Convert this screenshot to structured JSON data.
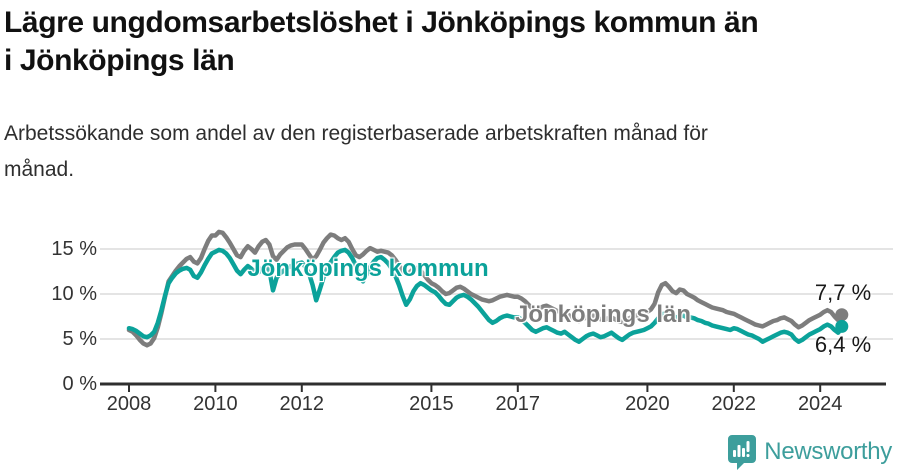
{
  "header": {
    "title": "Lägre ungdomsarbetslöshet i Jönköpings kommun än\ni Jönköpings län",
    "subtitle": "Arbetssökande som andel av den registerbaserade arbetskraften månad för\nmånad."
  },
  "footer": {
    "brand": "Newsworthy",
    "brand_color": "#3d9e9c",
    "logo_icon": "speech-bubble-bar-chart-icon"
  },
  "colors": {
    "kommun_line": "#0ba29a",
    "lan_line": "#7d7d7d",
    "axis": "#2f2f2f",
    "gridline": "#dcdcdc",
    "value_label": "#1a1a1a"
  },
  "chart_data": {
    "type": "line",
    "title": "Lägre ungdomsarbetslöshet i Jönköpings kommun än i Jönköpings län",
    "subtitle": "Arbetssökande som andel av den registerbaserade arbetskraften månad för månad.",
    "xlabel": "",
    "ylabel": "",
    "x_unit": "month",
    "x_start": "2008-01",
    "x_end": "2024-07",
    "ylim": [
      0,
      17.5
    ],
    "grid": "horizontal",
    "legend_position": "inline-labels",
    "x_ticks": [
      {
        "year": 2008,
        "label": "2008"
      },
      {
        "year": 2010,
        "label": "2010"
      },
      {
        "year": 2012,
        "label": "2012"
      },
      {
        "year": 2015,
        "label": "2015"
      },
      {
        "year": 2017,
        "label": "2017"
      },
      {
        "year": 2020,
        "label": "2020"
      },
      {
        "year": 2022,
        "label": "2022"
      },
      {
        "year": 2024,
        "label": "2024"
      }
    ],
    "y_ticks": [
      {
        "value": 0,
        "label": "0 %"
      },
      {
        "value": 5,
        "label": "5 %"
      },
      {
        "value": 10,
        "label": "10 %"
      },
      {
        "value": 15,
        "label": "15 %"
      }
    ],
    "series": [
      {
        "name": "Jönköpings län",
        "color": "#7d7d7d",
        "end_label": "7,7 %",
        "end_value": 7.7,
        "values": [
          6.0,
          5.8,
          5.4,
          4.9,
          4.5,
          4.3,
          4.5,
          5.1,
          6.3,
          7.9,
          9.7,
          11.4,
          12.0,
          12.6,
          13.1,
          13.5,
          13.9,
          14.1,
          13.6,
          13.4,
          14.0,
          15.0,
          15.9,
          16.5,
          16.5,
          16.9,
          16.8,
          16.3,
          15.7,
          15.0,
          14.3,
          14.1,
          14.8,
          15.3,
          15.0,
          14.6,
          15.3,
          15.8,
          16.0,
          15.5,
          14.2,
          13.8,
          14.4,
          14.8,
          15.2,
          15.4,
          15.5,
          15.5,
          15.5,
          15.0,
          14.4,
          13.8,
          14.2,
          14.9,
          15.7,
          16.2,
          16.6,
          16.5,
          16.2,
          16.0,
          16.2,
          15.8,
          15.0,
          14.3,
          14.1,
          14.4,
          14.8,
          15.1,
          14.9,
          14.7,
          14.8,
          14.7,
          14.6,
          14.3,
          13.8,
          13.2,
          12.6,
          12.2,
          12.4,
          12.8,
          12.9,
          12.6,
          12.1,
          11.6,
          11.2,
          11.0,
          10.7,
          10.3,
          10.0,
          10.1,
          10.4,
          10.7,
          10.8,
          10.6,
          10.3,
          10.0,
          9.8,
          9.6,
          9.4,
          9.3,
          9.2,
          9.3,
          9.5,
          9.7,
          9.8,
          9.9,
          9.8,
          9.7,
          9.7,
          9.5,
          9.2,
          8.8,
          8.4,
          8.2,
          8.4,
          8.6,
          8.7,
          8.5,
          8.3,
          8.1,
          8.0,
          7.9,
          7.7,
          7.4,
          7.2,
          7.0,
          7.2,
          7.4,
          7.5,
          7.6,
          7.4,
          7.2,
          7.1,
          7.3,
          7.4,
          7.2,
          7.0,
          6.9,
          7.1,
          7.3,
          7.5,
          7.6,
          7.7,
          7.8,
          8.0,
          8.3,
          8.9,
          10.2,
          11.0,
          11.2,
          10.8,
          10.3,
          10.1,
          10.5,
          10.4,
          10.0,
          9.8,
          9.6,
          9.3,
          9.1,
          8.9,
          8.7,
          8.5,
          8.4,
          8.3,
          8.2,
          8.0,
          7.9,
          7.8,
          7.6,
          7.4,
          7.2,
          7.0,
          6.8,
          6.6,
          6.5,
          6.4,
          6.6,
          6.8,
          7.0,
          7.1,
          7.3,
          7.4,
          7.2,
          7.0,
          6.6,
          6.3,
          6.5,
          6.8,
          7.1,
          7.3,
          7.5,
          7.7,
          8.0,
          8.2,
          8.0,
          7.5,
          7.1,
          7.7
        ]
      },
      {
        "name": "Jönköpings kommun",
        "color": "#0ba29a",
        "end_label": "6,4 %",
        "end_value": 6.4,
        "values": [
          6.2,
          6.1,
          5.9,
          5.6,
          5.3,
          5.2,
          5.4,
          5.8,
          6.8,
          8.2,
          9.8,
          11.2,
          11.8,
          12.3,
          12.6,
          12.8,
          12.9,
          12.7,
          12.0,
          11.8,
          12.4,
          13.2,
          13.9,
          14.5,
          14.7,
          14.9,
          14.8,
          14.5,
          14.0,
          13.3,
          12.6,
          12.2,
          12.7,
          13.1,
          12.8,
          12.4,
          12.4,
          12.9,
          13.1,
          12.6,
          10.4,
          11.8,
          12.3,
          12.6,
          12.9,
          13.1,
          13.3,
          13.4,
          13.5,
          13.0,
          12.3,
          11.0,
          9.3,
          10.5,
          11.8,
          12.7,
          13.5,
          14.1,
          14.6,
          14.8,
          14.9,
          14.6,
          14.0,
          13.2,
          12.1,
          11.4,
          12.2,
          13.0,
          13.6,
          14.0,
          14.1,
          13.8,
          13.4,
          12.8,
          12.0,
          11.0,
          9.8,
          8.8,
          9.4,
          10.3,
          10.9,
          11.2,
          11.0,
          10.7,
          10.4,
          10.2,
          9.8,
          9.3,
          8.9,
          8.8,
          9.2,
          9.6,
          9.8,
          9.9,
          9.7,
          9.4,
          9.0,
          8.6,
          8.1,
          7.6,
          7.1,
          6.8,
          7.0,
          7.3,
          7.5,
          7.6,
          7.5,
          7.4,
          7.4,
          7.2,
          6.8,
          6.4,
          6.0,
          5.8,
          6.0,
          6.2,
          6.3,
          6.1,
          5.9,
          5.7,
          5.6,
          5.8,
          5.5,
          5.2,
          4.9,
          4.7,
          5.0,
          5.3,
          5.5,
          5.6,
          5.4,
          5.2,
          5.3,
          5.5,
          5.7,
          5.4,
          5.1,
          4.9,
          5.2,
          5.5,
          5.7,
          5.8,
          5.9,
          6.0,
          6.2,
          6.4,
          6.8,
          7.3,
          7.7,
          7.9,
          7.8,
          7.6,
          7.4,
          7.5,
          7.6,
          7.4,
          7.4,
          7.3,
          7.1,
          7.0,
          6.8,
          6.7,
          6.5,
          6.4,
          6.3,
          6.2,
          6.1,
          6.0,
          6.2,
          6.1,
          5.9,
          5.7,
          5.5,
          5.4,
          5.2,
          5.0,
          4.7,
          4.9,
          5.1,
          5.3,
          5.5,
          5.7,
          5.8,
          5.7,
          5.5,
          5.0,
          4.7,
          4.9,
          5.2,
          5.5,
          5.7,
          5.9,
          6.1,
          6.4,
          6.6,
          6.4,
          6.0,
          5.7,
          6.4
        ]
      }
    ]
  }
}
